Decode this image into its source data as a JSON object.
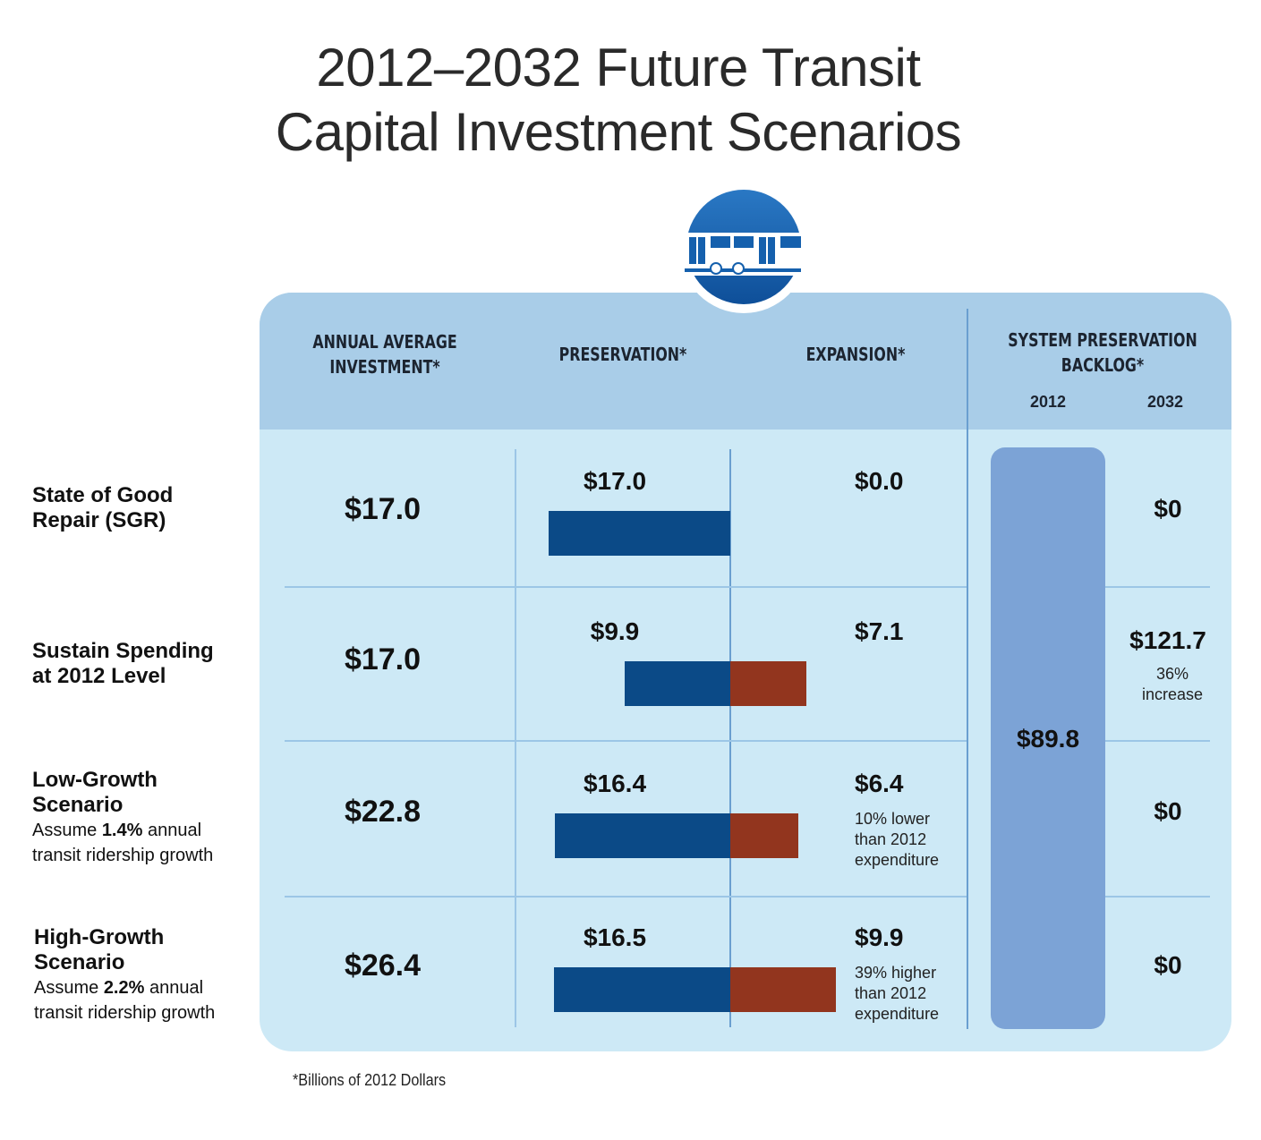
{
  "title_line1": "2012–2032 Future Transit",
  "title_line2": "Capital Investment Scenarios",
  "icon": "train-icon",
  "colors": {
    "preservation": "#0b4a87",
    "expansion": "#92351e",
    "backlog": "#7ca3d6",
    "panel": "#cde9f6",
    "header": "#a9cde8"
  },
  "headers": {
    "annual": [
      "ANNUAL AVERAGE",
      "INVESTMENT*"
    ],
    "preservation": "PRESERVATION*",
    "expansion": "EXPANSION*",
    "backlog": [
      "SYSTEM PRESERVATION",
      "BACKLOG*"
    ],
    "year_2012": "2012",
    "year_2032": "2032"
  },
  "footnote": "*Billions of 2012 Dollars",
  "chart_data": {
    "type": "bar",
    "orientation": "horizontal-diverging",
    "units": "Billions of 2012 Dollars",
    "categories": [
      "State of Good Repair (SGR)",
      "Sustain Spending at 2012 Level",
      "Low-Growth Scenario",
      "High-Growth Scenario"
    ],
    "series": [
      {
        "name": "PRESERVATION*",
        "values": [
          17.0,
          9.9,
          16.4,
          16.5
        ]
      },
      {
        "name": "EXPANSION*",
        "values": [
          0.0,
          7.1,
          6.4,
          9.9
        ]
      }
    ],
    "annual_average_investment": [
      17.0,
      17.0,
      22.8,
      26.4
    ],
    "backlog_2012": 89.8,
    "backlog_2032": [
      0,
      121.7,
      0,
      0
    ]
  },
  "rows": [
    {
      "label": [
        "State of Good",
        "Repair (SGR)"
      ],
      "sub": null,
      "annual": "$17.0",
      "pres": "$17.0",
      "exp": "$0.0",
      "exp_note": [],
      "b2032": "$0",
      "b2032_note": []
    },
    {
      "label": [
        "Sustain Spending",
        "at 2012 Level"
      ],
      "sub": null,
      "annual": "$17.0",
      "pres": "$9.9",
      "exp": "$7.1",
      "exp_note": [],
      "b2032": "$121.7",
      "b2032_note": [
        "36%",
        "increase"
      ]
    },
    {
      "label": [
        "Low-Growth",
        "Scenario"
      ],
      "sub": {
        "pre": "Assume ",
        "bold": "1.4%",
        "post": " annual",
        "line2": "transit ridership growth"
      },
      "annual": "$22.8",
      "pres": "$16.4",
      "exp": "$6.4",
      "exp_note": [
        "10% lower",
        "than 2012",
        "expenditure"
      ],
      "b2032": "$0",
      "b2032_note": []
    },
    {
      "label": [
        "High-Growth",
        "Scenario"
      ],
      "sub": {
        "pre": "Assume ",
        "bold": "2.2%",
        "post": " annual",
        "line2": "transit ridership growth"
      },
      "annual": "$26.4",
      "pres": "$16.5",
      "exp": "$9.9",
      "exp_note": [
        "39% higher",
        "than 2012",
        "expenditure"
      ],
      "b2032": "$0",
      "b2032_note": []
    }
  ],
  "backlog_2012_label": "$89.8"
}
